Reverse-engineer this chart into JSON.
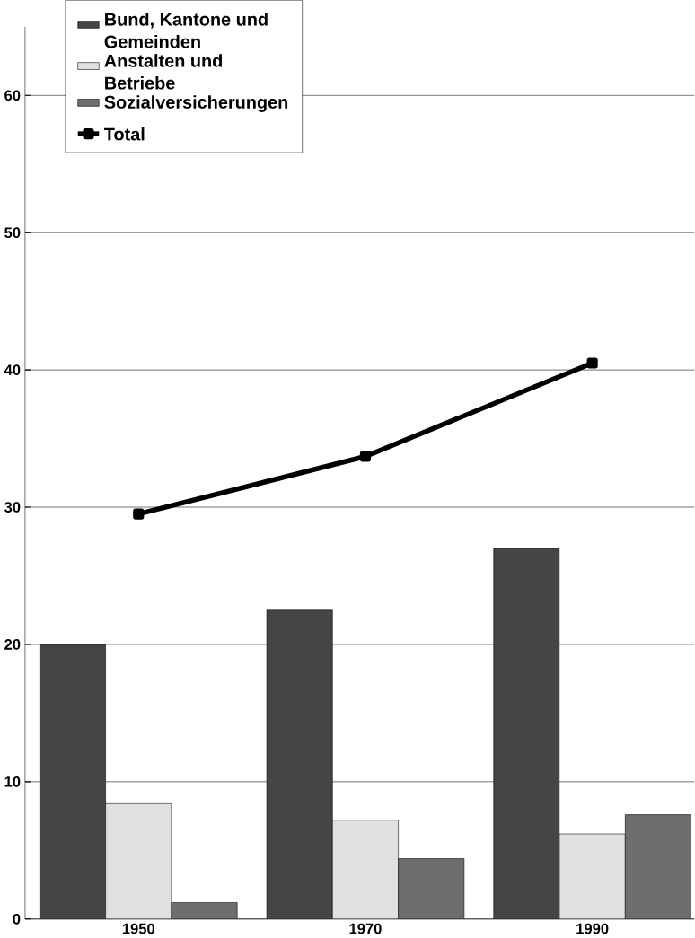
{
  "chart_data": {
    "type": "bar",
    "categories": [
      "1950",
      "1970",
      "1990"
    ],
    "series": [
      {
        "name": "Bund, Kantone und Gemeinden",
        "color": "#454545",
        "values": [
          20,
          22.5,
          27
        ]
      },
      {
        "name": "Anstalten und Betriebe",
        "color": "#e0e0e0",
        "values": [
          8.4,
          7.2,
          6.2
        ]
      },
      {
        "name": "Sozialversicherungen",
        "color": "#6e6e6e",
        "values": [
          1.2,
          4.4,
          7.6
        ]
      },
      {
        "name": "Total",
        "type": "line",
        "color": "#000000",
        "marker": "square",
        "line_style": "solid",
        "values": [
          29.5,
          33.7,
          40.5
        ]
      }
    ],
    "ylim": [
      0,
      65
    ],
    "yticks": [
      0,
      10,
      20,
      30,
      40,
      50,
      60
    ],
    "grid": "y",
    "legend": "top left"
  }
}
